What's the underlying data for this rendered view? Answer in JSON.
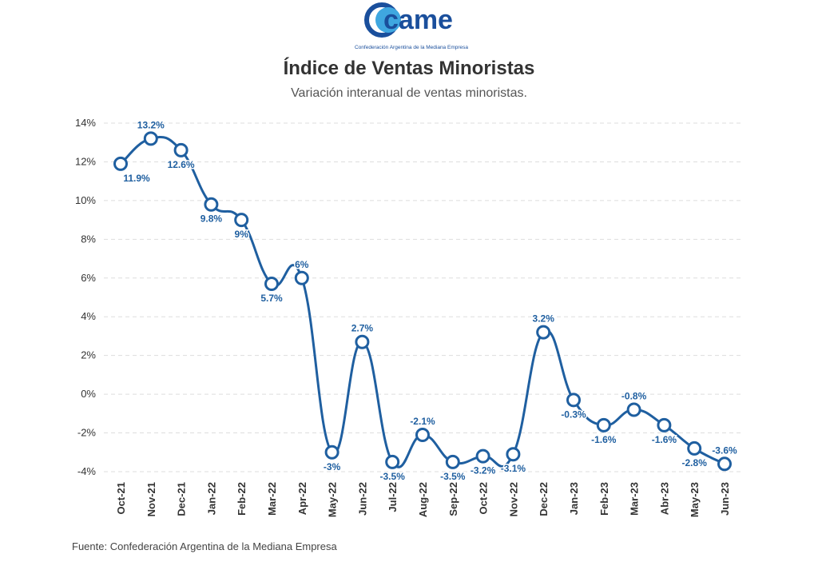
{
  "header": {
    "logo_text": "came",
    "logo_caption": "Confederación Argentina de la Mediana Empresa",
    "title": "Índice de Ventas Minoristas",
    "subtitle": "Variación interanual de ventas minoristas."
  },
  "footer": {
    "source": "Fuente: Confederación Argentina de la Mediana Empresa"
  },
  "colors": {
    "line": "#1f5fa0",
    "label": "#1f5fa0",
    "grid": "#dddddd",
    "brand": "#1a4f9c"
  },
  "chart_data": {
    "type": "line",
    "title": "Índice de Ventas Minoristas",
    "subtitle": "Variación interanual de ventas minoristas.",
    "xlabel": "",
    "ylabel": "",
    "categories": [
      "Oct-21",
      "Nov-21",
      "Dec-21",
      "Jan-22",
      "Feb-22",
      "Mar-22",
      "Apr-22",
      "May-22",
      "Jun-22",
      "Jul-22",
      "Aug-22",
      "Sep-22",
      "Oct-22",
      "Nov-22",
      "Dec-22",
      "Jan-23",
      "Feb-23",
      "Mar-23",
      "Abr-23",
      "May-23",
      "Jun-23"
    ],
    "series": [
      {
        "values": [
          11.9,
          13.2,
          12.6,
          9.8,
          9,
          5.7,
          6,
          -3,
          2.7,
          -3.5,
          -2.1,
          -3.5,
          -3.2,
          -3.1,
          3.2,
          -0.3,
          -1.6,
          -0.8,
          -1.6,
          -2.8,
          -3.6
        ],
        "labels": [
          "11.9%",
          "13.2%",
          "12.6%",
          "9.8%",
          "9%",
          "5.7%",
          "6%",
          "-3%",
          "2.7%",
          "-3.5%",
          "-2.1%",
          "-3.5%",
          "-3.2%",
          "-3.1%",
          "3.2%",
          "-0.3%",
          "-1.6%",
          "-0.8%",
          "-1.6%",
          "-2.8%",
          "-3.6%"
        ]
      }
    ],
    "yticks": [
      "14%",
      "12%",
      "10%",
      "8%",
      "6%",
      "4%",
      "2%",
      "0%",
      "-2%",
      "-4%"
    ],
    "ylim": [
      -4,
      14
    ],
    "grid": true,
    "smooth": true
  }
}
